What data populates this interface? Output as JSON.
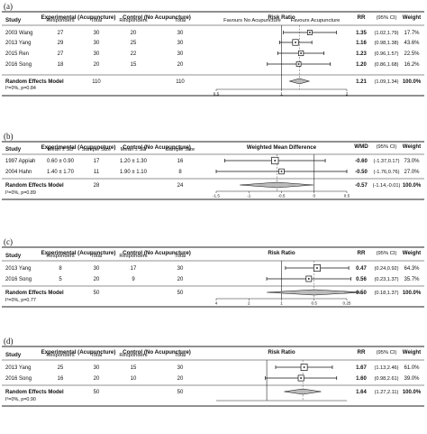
{
  "chart_data": [
    {
      "type": "forest",
      "label": "(a)",
      "measure": "Risk Ratio",
      "measure_abbr": "RR",
      "headers": {
        "study": "Study",
        "group1": "Experimental (Acupuncture)",
        "group2": "Control (No Acupuncture)",
        "col1": "Responders",
        "col2": "Total",
        "col3": "Responders",
        "col4": "Total",
        "ci": "(95% CI)",
        "weight": "Weight",
        "favours_left": "Favours No Acupuncture",
        "favours_right": "Favours Acupuncture"
      },
      "studies": [
        {
          "name": "2003 Wang",
          "c1": "27",
          "c2": "30",
          "c3": "20",
          "c4": "30",
          "est": 1.35,
          "lo": 1.02,
          "hi": 1.79,
          "est_text": "1.35",
          "ci_text": "(1.02,1.79)",
          "weight": "17.7%"
        },
        {
          "name": "2013 Yang",
          "c1": "29",
          "c2": "30",
          "c3": "25",
          "c4": "30",
          "est": 1.16,
          "lo": 0.98,
          "hi": 1.38,
          "est_text": "1.16",
          "ci_text": "(0.98,1.38)",
          "weight": "43.6%"
        },
        {
          "name": "2015 Ren",
          "c1": "27",
          "c2": "30",
          "c3": "22",
          "c4": "30",
          "est": 1.23,
          "lo": 0.96,
          "hi": 1.57,
          "est_text": "1.23",
          "ci_text": "(0.96,1.57)",
          "weight": "22.5%"
        },
        {
          "name": "2016 Song",
          "c1": "18",
          "c2": "20",
          "c3": "15",
          "c4": "20",
          "est": 1.2,
          "lo": 0.86,
          "hi": 1.68,
          "est_text": "1.20",
          "ci_text": "(0.86,1.68)",
          "weight": "16.2%"
        }
      ],
      "pooled": {
        "name": "Random Effects Model",
        "t1": "110",
        "t2": "110",
        "est": 1.21,
        "lo": 1.09,
        "hi": 1.34,
        "est_text": "1.21",
        "ci_text": "(1.09,1.34)",
        "weight": "100.0%"
      },
      "heterogeneity": "I²=0%, p=0.84",
      "scale": "log",
      "xlim": [
        0.5,
        2
      ],
      "ticks": [
        {
          "v": 0.5,
          "t": "0.5"
        },
        {
          "v": 1,
          "t": "1"
        },
        {
          "v": 2,
          "t": "2"
        }
      ]
    },
    {
      "type": "forest",
      "label": "(b)",
      "measure": "Weighted Mean Difference",
      "measure_abbr": "WMD",
      "headers": {
        "study": "Study",
        "group1": "Experimental (Acupuncture)",
        "group2": "Control (No Acupuncture)",
        "col1": "Mean ± SD",
        "col2": "Sample Size",
        "col3": "Mean ± SD",
        "col4": "Sample Size",
        "ci": "(95% CI)",
        "weight": "Weight",
        "favours_left": "",
        "favours_right": ""
      },
      "studies": [
        {
          "name": "1997 Appiah",
          "c1": "0.60 ± 0.90",
          "c2": "17",
          "c3": "1.20 ± 1.30",
          "c4": "16",
          "est": -0.6,
          "lo": -1.37,
          "hi": 0.17,
          "est_text": "-0.60",
          "ci_text": "(-1.37,0.17)",
          "weight": "73.0%"
        },
        {
          "name": "2004 Hahn",
          "c1": "1.40 ± 1.70",
          "c2": "11",
          "c3": "1.90 ± 1.10",
          "c4": "8",
          "est": -0.5,
          "lo": -1.76,
          "hi": 0.76,
          "est_text": "-0.50",
          "ci_text": "(-1.76,0.76)",
          "weight": "27.0%"
        }
      ],
      "pooled": {
        "name": "Random Effects Model",
        "t1": "28",
        "t2": "24",
        "est": -0.57,
        "lo": -1.14,
        "hi": -0.01,
        "est_text": "-0.57",
        "ci_text": "(-1.14,-0.01)",
        "weight": "100.0%"
      },
      "heterogeneity": "I²=0%, p=0.89",
      "scale": "linear",
      "xlim": [
        -1.5,
        0.5
      ],
      "ticks": [
        {
          "v": -1.5,
          "t": "-1.5"
        },
        {
          "v": -1,
          "t": "-1"
        },
        {
          "v": -0.5,
          "t": "-0.5"
        },
        {
          "v": 0,
          "t": "0"
        },
        {
          "v": 0.5,
          "t": "0.5"
        }
      ]
    },
    {
      "type": "forest",
      "label": "(c)",
      "measure": "Risk Ratio",
      "measure_abbr": "RR",
      "headers": {
        "study": "Study",
        "group1": "Experimental (Acupuncture)",
        "group2": "Control (No Acupuncture)",
        "col1": "Responders",
        "col2": "Total",
        "col3": "Responders",
        "col4": "Total",
        "ci": "(95% CI)",
        "weight": "Weight",
        "favours_left": "",
        "favours_right": ""
      },
      "studies": [
        {
          "name": "2013 Yang",
          "c1": "8",
          "c2": "30",
          "c3": "17",
          "c4": "30",
          "est": 0.47,
          "lo": 0.24,
          "hi": 0.92,
          "est_text": "0.47",
          "ci_text": "(0.24,0.92)",
          "weight": "64.3%"
        },
        {
          "name": "2016 Song",
          "c1": "5",
          "c2": "20",
          "c3": "9",
          "c4": "20",
          "est": 0.56,
          "lo": 0.23,
          "hi": 1.37,
          "est_text": "0.56",
          "ci_text": "(0.23,1.37)",
          "weight": "35.7%"
        }
      ],
      "pooled": {
        "name": "Random Effects Model",
        "t1": "50",
        "t2": "50",
        "est": 0.5,
        "lo": 0.18,
        "hi": 1.37,
        "est_text": "0.50",
        "ci_text": "(0.18,1.37)",
        "weight": "100.0%"
      },
      "heterogeneity": "I²=0%, p=0.77",
      "scale": "reciprocal",
      "xlim": [
        4,
        0.25
      ],
      "ticks": [
        {
          "v": 4,
          "t": "4"
        },
        {
          "v": 2,
          "t": "2"
        },
        {
          "v": 1,
          "t": "1"
        },
        {
          "v": 0.5,
          "t": "0.5"
        },
        {
          "v": 0.25,
          "t": "0.25"
        }
      ]
    },
    {
      "type": "forest",
      "label": "(d)",
      "measure": "Risk Ratio",
      "measure_abbr": "RR",
      "headers": {
        "study": "Study",
        "group1": "Experimental (Acupuncture)",
        "group2": "Control (No Acupuncture)",
        "col1": "Responders",
        "col2": "Total",
        "col3": "Responders",
        "col4": "Total",
        "ci": "(95% CI)",
        "weight": "Weight",
        "favours_left": "",
        "favours_right": ""
      },
      "studies": [
        {
          "name": "2013 Yang",
          "c1": "25",
          "c2": "30",
          "c3": "15",
          "c4": "30",
          "est": 1.67,
          "lo": 1.13,
          "hi": 2.46,
          "est_text": "1.67",
          "ci_text": "(1.13,2.46)",
          "weight": "61.0%"
        },
        {
          "name": "2016 Song",
          "c1": "16",
          "c2": "20",
          "c3": "10",
          "c4": "20",
          "est": 1.6,
          "lo": 0.98,
          "hi": 2.61,
          "est_text": "1.60",
          "ci_text": "(0.98,2.61)",
          "weight": "39.0%"
        }
      ],
      "pooled": {
        "name": "Random Effects Model",
        "t1": "50",
        "t2": "50",
        "est": 1.64,
        "lo": 1.27,
        "hi": 2.11,
        "est_text": "1.64",
        "ci_text": "(1.27,2.11)",
        "weight": "100.0%"
      },
      "heterogeneity": "I²=0%, p=0.90",
      "scale": "log",
      "xlim": [
        0.5,
        3
      ],
      "ticks": []
    }
  ]
}
